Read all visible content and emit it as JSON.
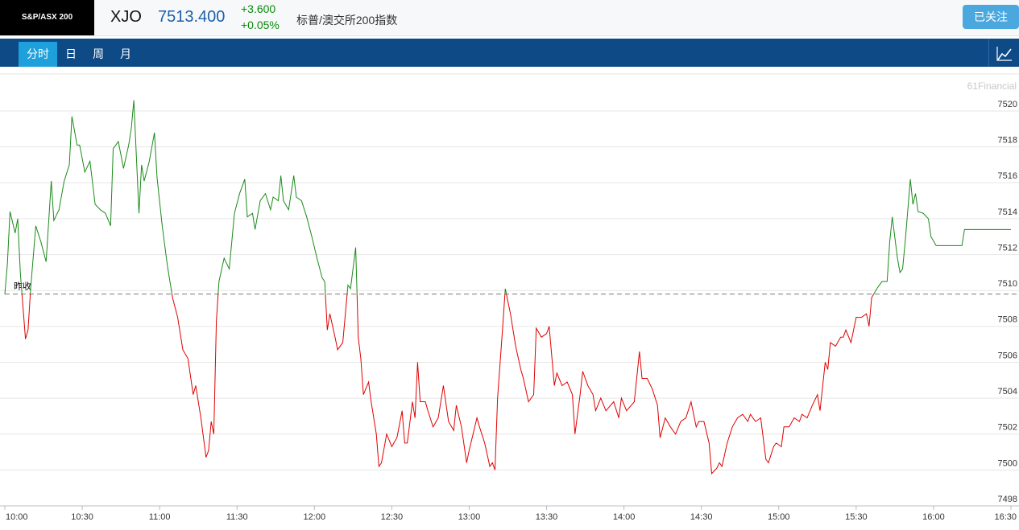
{
  "header": {
    "logo": "S&P/ASX 200",
    "symbol": "XJO",
    "price": "7513.400",
    "change": "+3.600",
    "change_pct": "+0.05%",
    "name": "标普/澳交所200指数",
    "follow_button": "已关注"
  },
  "tabs": [
    "分时",
    "日",
    "周",
    "月"
  ],
  "chart_data": {
    "type": "line",
    "watermark": "61Financial",
    "reference_line": {
      "label": "昨收",
      "value": 7509.8,
      "color": "#888888"
    },
    "colors": {
      "above": "#1a8a1a",
      "below": "#e00000"
    },
    "xlim": [
      "10:00",
      "16:30"
    ],
    "xticks": [
      "10:00",
      "10:30",
      "11:00",
      "11:30",
      "12:00",
      "12:30",
      "13:00",
      "13:30",
      "14:00",
      "14:30",
      "15:00",
      "15:30",
      "16:00",
      "16:30"
    ],
    "ylim": [
      7498,
      7522
    ],
    "yticks": [
      7498,
      7500,
      7502,
      7504,
      7506,
      7508,
      7510,
      7512,
      7514,
      7516,
      7518,
      7520
    ],
    "grid": true,
    "x": [
      "10:00",
      "10:01",
      "10:02",
      "10:04",
      "10:05",
      "10:06",
      "10:08",
      "10:09",
      "10:10",
      "10:12",
      "10:14",
      "10:16",
      "10:18",
      "10:19",
      "10:21",
      "10:23",
      "10:25",
      "10:26",
      "10:28",
      "10:29",
      "10:31",
      "10:33",
      "10:35",
      "10:37",
      "10:39",
      "10:41",
      "10:42",
      "10:44",
      "10:46",
      "10:48",
      "10:49",
      "10:50",
      "10:52",
      "10:53",
      "10:54",
      "10:56",
      "10:58",
      "10:59",
      "11:01",
      "11:03",
      "11:05",
      "11:07",
      "11:09",
      "11:11",
      "11:13",
      "11:14",
      "11:16",
      "11:18",
      "11:19",
      "11:20",
      "11:21",
      "11:22",
      "11:23",
      "11:25",
      "11:27",
      "11:29",
      "11:31",
      "11:33",
      "11:34",
      "11:36",
      "11:37",
      "11:39",
      "11:41",
      "11:43",
      "11:44",
      "11:46",
      "11:47",
      "11:48",
      "11:50",
      "11:52",
      "11:53",
      "11:55",
      "11:57",
      "11:59",
      "12:01",
      "12:03",
      "12:04",
      "12:05",
      "12:06",
      "12:08",
      "12:09",
      "12:11",
      "12:13",
      "12:14",
      "12:16",
      "12:17",
      "12:18",
      "12:19",
      "12:21",
      "12:22",
      "12:24",
      "12:25",
      "12:26",
      "12:28",
      "12:30",
      "12:32",
      "12:34",
      "12:35",
      "12:36",
      "12:38",
      "12:39",
      "12:40",
      "12:41",
      "12:43",
      "12:44",
      "12:46",
      "12:48",
      "12:50",
      "12:52",
      "12:54",
      "12:55",
      "12:57",
      "12:59",
      "13:00",
      "13:03",
      "13:04",
      "13:06",
      "13:08",
      "13:09",
      "13:10",
      "13:11",
      "13:13",
      "13:14",
      "13:16",
      "13:18",
      "13:20",
      "13:21",
      "13:23",
      "13:25",
      "13:26",
      "13:28",
      "13:30",
      "13:31",
      "13:33",
      "13:34",
      "13:36",
      "13:38",
      "13:40",
      "13:41",
      "13:43",
      "13:44",
      "13:46",
      "13:48",
      "13:49",
      "13:51",
      "13:53",
      "13:56",
      "13:58",
      "13:59",
      "14:01",
      "14:04",
      "14:06",
      "14:07",
      "14:09",
      "14:11",
      "14:13",
      "14:14",
      "14:16",
      "14:18",
      "14:20",
      "14:22",
      "14:24",
      "14:26",
      "14:28",
      "14:29",
      "14:31",
      "14:33",
      "14:34",
      "14:36",
      "14:37",
      "14:38",
      "14:40",
      "14:42",
      "14:44",
      "14:46",
      "14:48",
      "14:49",
      "14:51",
      "14:53",
      "14:55",
      "14:56",
      "14:58",
      "14:59",
      "15:01",
      "15:02",
      "15:04",
      "15:06",
      "15:08",
      "15:09",
      "15:11",
      "15:13",
      "15:15",
      "15:16",
      "15:18",
      "15:19",
      "15:20",
      "15:22",
      "15:24",
      "15:25",
      "15:26",
      "15:28",
      "15:30",
      "15:32",
      "15:34",
      "15:35",
      "15:36",
      "15:38",
      "15:40",
      "15:42",
      "15:43",
      "15:44",
      "15:46",
      "15:47",
      "15:48",
      "15:49",
      "15:51",
      "15:52",
      "15:53",
      "15:54",
      "15:56",
      "15:58",
      "15:59",
      "16:01",
      "16:04",
      "16:11",
      "16:12",
      "16:30"
    ],
    "values": [
      7509.8,
      7511.5,
      7514.4,
      7513.2,
      7514.0,
      7511.0,
      7507.3,
      7507.8,
      7510.1,
      7513.6,
      7512.7,
      7511.6,
      7516.1,
      7513.9,
      7514.5,
      7516.1,
      7517.0,
      7519.7,
      7518.1,
      7518.1,
      7516.6,
      7517.2,
      7514.8,
      7514.5,
      7514.3,
      7513.6,
      7517.9,
      7518.3,
      7516.8,
      7518.1,
      7519.0,
      7520.6,
      7514.3,
      7517.0,
      7516.1,
      7517.2,
      7518.8,
      7516.3,
      7513.6,
      7511.4,
      7509.6,
      7508.5,
      7506.7,
      7506.2,
      7504.2,
      7504.7,
      7502.9,
      7500.7,
      7501.1,
      7502.7,
      7502.0,
      7508.3,
      7510.5,
      7511.8,
      7511.2,
      7514.3,
      7515.4,
      7516.2,
      7514.1,
      7514.3,
      7513.4,
      7515.0,
      7515.4,
      7514.5,
      7515.2,
      7515.0,
      7516.4,
      7515.0,
      7514.5,
      7516.4,
      7515.2,
      7515.0,
      7514.1,
      7513.0,
      7511.8,
      7510.7,
      7510.5,
      7507.8,
      7508.7,
      7507.4,
      7506.7,
      7507.1,
      7510.3,
      7510.1,
      7512.4,
      7507.4,
      7506.2,
      7504.2,
      7504.9,
      7503.8,
      7502.0,
      7500.2,
      7500.4,
      7502.0,
      7501.3,
      7501.8,
      7503.3,
      7501.5,
      7501.5,
      7503.8,
      7502.9,
      7506.0,
      7503.8,
      7503.8,
      7503.3,
      7502.4,
      7502.9,
      7504.7,
      7502.7,
      7502.2,
      7503.6,
      7502.4,
      7500.4,
      7501.1,
      7502.9,
      7502.4,
      7501.5,
      7500.2,
      7500.4,
      7500.0,
      7504.0,
      7508.0,
      7510.1,
      7508.7,
      7506.9,
      7505.6,
      7505.1,
      7503.8,
      7504.2,
      7507.9,
      7507.4,
      7507.6,
      7508.0,
      7504.7,
      7505.4,
      7504.7,
      7504.9,
      7504.2,
      7502.0,
      7504.2,
      7505.5,
      7504.7,
      7504.2,
      7503.3,
      7504.0,
      7503.3,
      7503.8,
      7502.9,
      7504.0,
      7503.3,
      7503.8,
      7506.6,
      7505.1,
      7505.1,
      7504.5,
      7503.6,
      7501.8,
      7502.9,
      7502.4,
      7502.0,
      7502.7,
      7502.9,
      7503.8,
      7502.4,
      7502.7,
      7502.7,
      7501.5,
      7499.8,
      7500.1,
      7500.4,
      7500.2,
      7501.5,
      7502.4,
      7502.9,
      7503.1,
      7502.7,
      7503.1,
      7502.7,
      7502.9,
      7500.6,
      7500.4,
      7501.3,
      7501.5,
      7501.3,
      7502.4,
      7502.4,
      7502.9,
      7502.7,
      7503.1,
      7502.9,
      7503.6,
      7504.2,
      7503.3,
      7506.0,
      7505.6,
      7507.1,
      7506.9,
      7507.4,
      7507.4,
      7507.8,
      7507.1,
      7508.5,
      7508.5,
      7508.7,
      7508.0,
      7509.6,
      7510.1,
      7510.5,
      7510.5,
      7512.7,
      7514.1,
      7511.8,
      7511.0,
      7511.2,
      7512.7,
      7516.2,
      7514.8,
      7515.4,
      7514.4,
      7514.3,
      7514.0,
      7513.0,
      7512.5,
      7512.5,
      7512.5,
      7513.4,
      7513.4
    ]
  }
}
